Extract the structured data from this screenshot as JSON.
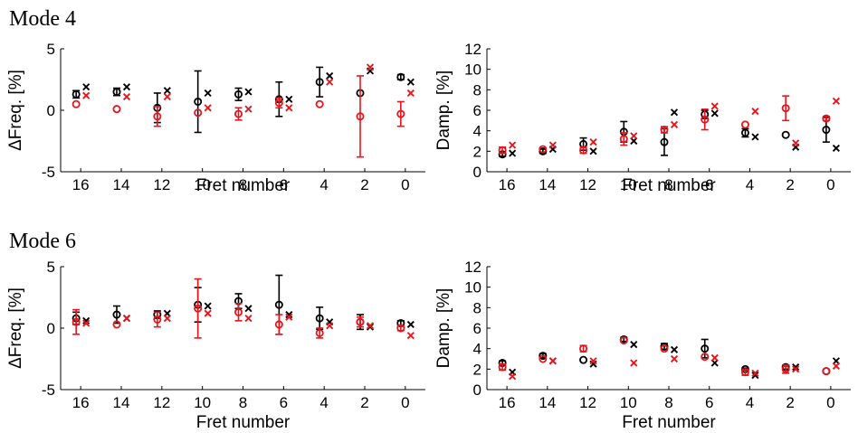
{
  "figure": {
    "colors": {
      "measured": "#000000",
      "simulated": "#e8141c",
      "axis": "#000000"
    }
  },
  "mode_titles": [
    "Mode 4",
    "Mode 6"
  ],
  "chart_data": [
    {
      "id": "mode4-freq",
      "type": "scatter",
      "title": "Mode 4",
      "xlabel": "Fret number",
      "ylabel": "ΔFreq. [%]",
      "categories": [
        "16",
        "14",
        "12",
        "10",
        "8",
        "6",
        "4",
        "2",
        "0"
      ],
      "ylim": [
        -5,
        5
      ],
      "yticks": [
        -5,
        0,
        5
      ],
      "series": [
        {
          "color": "#000000",
          "marker": "circle",
          "values": [
            1.3,
            1.5,
            0.2,
            0.7,
            1.3,
            0.9,
            2.3,
            1.4,
            2.7
          ],
          "err": [
            0.3,
            0.3,
            1.2,
            2.5,
            0.5,
            1.4,
            1.2,
            0,
            0.2
          ]
        },
        {
          "color": "#000000",
          "marker": "cross",
          "values": [
            1.9,
            1.9,
            1.6,
            1.4,
            1.5,
            0.9,
            2.8,
            3.2,
            2.3
          ]
        },
        {
          "color": "#e8141c",
          "marker": "circle",
          "values": [
            0.5,
            0.1,
            -0.5,
            -0.2,
            -0.3,
            0.6,
            0.5,
            -0.5,
            -0.3
          ],
          "err": [
            0,
            0,
            0.8,
            0,
            0.5,
            0.4,
            0,
            3.3,
            1.0
          ]
        },
        {
          "color": "#e8141c",
          "marker": "cross",
          "values": [
            1.2,
            1.1,
            1.1,
            0.2,
            0.1,
            0.2,
            2.3,
            3.5,
            1.4
          ]
        }
      ]
    },
    {
      "id": "mode4-damp",
      "type": "scatter",
      "title": "",
      "xlabel": "Fret number",
      "ylabel": "Damp. [%]",
      "categories": [
        "16",
        "14",
        "12",
        "10",
        "8",
        "6",
        "4",
        "2",
        "0"
      ],
      "ylim": [
        0,
        12
      ],
      "yticks": [
        0,
        2,
        4,
        6,
        8,
        10,
        12
      ],
      "series": [
        {
          "color": "#000000",
          "marker": "circle",
          "values": [
            1.7,
            2.0,
            2.7,
            3.9,
            2.9,
            5.6,
            3.8,
            3.6,
            4.1
          ],
          "err": [
            0.2,
            0.2,
            0.6,
            1.0,
            1.3,
            0.4,
            0.4,
            0,
            1.2
          ]
        },
        {
          "color": "#000000",
          "marker": "cross",
          "values": [
            1.8,
            2.2,
            2.0,
            3.0,
            5.8,
            5.7,
            3.4,
            2.4,
            2.3
          ]
        },
        {
          "color": "#e8141c",
          "marker": "circle",
          "values": [
            2.1,
            2.2,
            2.1,
            3.2,
            4.1,
            5.1,
            4.6,
            6.2,
            5.2
          ],
          "err": [
            0.3,
            0,
            0.3,
            0.6,
            0.3,
            1.0,
            0,
            1.2,
            0.2
          ]
        },
        {
          "color": "#e8141c",
          "marker": "cross",
          "values": [
            2.6,
            2.6,
            2.9,
            3.5,
            4.6,
            6.4,
            5.9,
            2.8,
            6.9
          ]
        }
      ]
    },
    {
      "id": "mode6-freq",
      "type": "scatter",
      "title": "Mode 6",
      "xlabel": "Fret number",
      "ylabel": "ΔFreq. [%]",
      "categories": [
        "16",
        "14",
        "12",
        "10",
        "8",
        "6",
        "4",
        "2",
        "0"
      ],
      "ylim": [
        -5,
        5
      ],
      "yticks": [
        -5,
        0,
        5
      ],
      "series": [
        {
          "color": "#000000",
          "marker": "circle",
          "values": [
            0.8,
            1.1,
            1.1,
            1.9,
            2.2,
            1.9,
            0.8,
            0.5,
            0.4
          ],
          "err": [
            0.5,
            0.7,
            0.3,
            1.4,
            0.6,
            2.4,
            0.9,
            0.6,
            0.2
          ]
        },
        {
          "color": "#000000",
          "marker": "cross",
          "values": [
            0.6,
            0.8,
            1.2,
            1.8,
            1.6,
            1.1,
            0.5,
            0.1,
            0.3
          ]
        },
        {
          "color": "#e8141c",
          "marker": "circle",
          "values": [
            0.5,
            0.3,
            0.7,
            1.6,
            1.3,
            0.3,
            -0.4,
            0.5,
            0.0
          ],
          "err": [
            1.0,
            0,
            0.6,
            2.4,
            0.7,
            0.8,
            0.4,
            0.4,
            0.2
          ]
        },
        {
          "color": "#e8141c",
          "marker": "cross",
          "values": [
            0.4,
            0.8,
            0.8,
            1.2,
            0.8,
            0.9,
            0.2,
            0.2,
            -0.6
          ]
        }
      ]
    },
    {
      "id": "mode6-damp",
      "type": "scatter",
      "title": "",
      "xlabel": "Fret number",
      "ylabel": "Damp. [%]",
      "categories": [
        "16",
        "14",
        "12",
        "10",
        "8",
        "6",
        "4",
        "2",
        "0"
      ],
      "ylim": [
        0,
        12
      ],
      "yticks": [
        0,
        2,
        4,
        6,
        8,
        10,
        12
      ],
      "series": [
        {
          "color": "#000000",
          "marker": "circle",
          "values": [
            2.6,
            3.3,
            2.9,
            4.9,
            4.2,
            4.0,
            2.0,
            2.2,
            1.8
          ],
          "err": [
            0.2,
            0.2,
            0,
            0.2,
            0.3,
            0.9,
            0.1,
            0.2,
            0
          ]
        },
        {
          "color": "#000000",
          "marker": "cross",
          "values": [
            1.7,
            2.8,
            2.5,
            4.4,
            3.9,
            2.6,
            1.4,
            2.2,
            2.8
          ]
        },
        {
          "color": "#e8141c",
          "marker": "circle",
          "values": [
            2.2,
            3.0,
            4.0,
            4.8,
            4.0,
            3.2,
            1.7,
            2.0,
            1.8
          ],
          "err": [
            0.3,
            0,
            0.3,
            0,
            0,
            0,
            0.3,
            0.4,
            0
          ]
        },
        {
          "color": "#e8141c",
          "marker": "cross",
          "values": [
            1.3,
            2.8,
            2.8,
            2.6,
            3.0,
            3.1,
            1.6,
            2.0,
            2.3
          ]
        }
      ]
    }
  ]
}
